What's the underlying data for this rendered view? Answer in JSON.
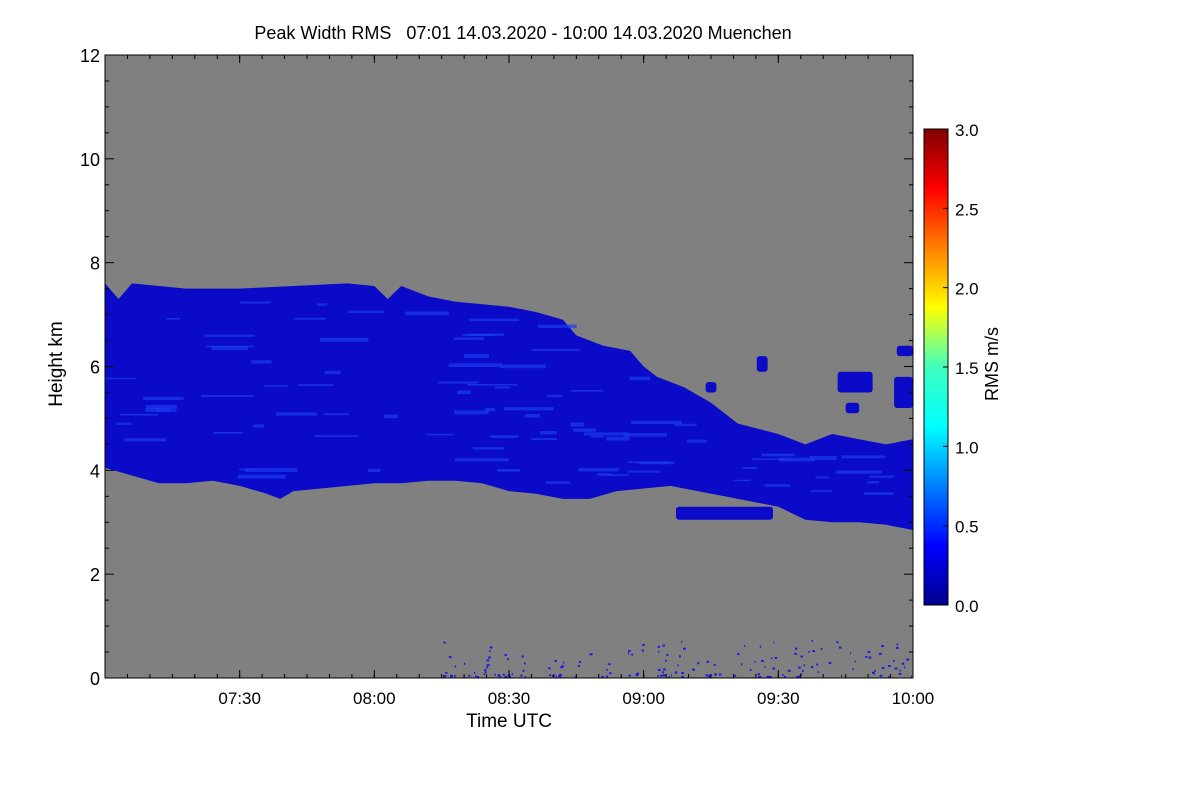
{
  "chart_data": {
    "type": "heatmap",
    "title": "Peak Width RMS   07:01 14.03.2020 - 10:00 14.03.2020 Muenchen",
    "xlabel": "Time UTC",
    "ylabel": "Height km",
    "xlim_hours": [
      7.0,
      10.0
    ],
    "ylim_km": [
      0,
      12
    ],
    "x_ticks": [
      {
        "value": 7.5,
        "label": "07:30"
      },
      {
        "value": 8.0,
        "label": "08:00"
      },
      {
        "value": 8.5,
        "label": "08:30"
      },
      {
        "value": 9.0,
        "label": "09:00"
      },
      {
        "value": 9.5,
        "label": "09:30"
      },
      {
        "value": 10.0,
        "label": "10:00"
      }
    ],
    "y_ticks": [
      {
        "value": 0,
        "label": "0"
      },
      {
        "value": 2,
        "label": "2"
      },
      {
        "value": 4,
        "label": "4"
      },
      {
        "value": 6,
        "label": "6"
      },
      {
        "value": 8,
        "label": "8"
      },
      {
        "value": 10,
        "label": "10"
      },
      {
        "value": 12,
        "label": "12"
      }
    ],
    "no_data_color": "#808080",
    "colorbar": {
      "label": "RMS m/s",
      "range": [
        0.0,
        3.0
      ],
      "colormap": "jet",
      "ticks": [
        {
          "value": 0.0,
          "label": "0.0"
        },
        {
          "value": 0.5,
          "label": "0.5"
        },
        {
          "value": 1.0,
          "label": "1.0"
        },
        {
          "value": 1.5,
          "label": "1.5"
        },
        {
          "value": 2.0,
          "label": "2.0"
        },
        {
          "value": 2.5,
          "label": "2.5"
        },
        {
          "value": 3.0,
          "label": "3.0"
        }
      ]
    },
    "cloud_layer": {
      "description_value_ms": 0.3,
      "color_dark": "#0a0ac8",
      "color_light": "#1a3cf0",
      "top_km": [
        [
          7.0,
          7.6
        ],
        [
          7.05,
          7.3
        ],
        [
          7.1,
          7.6
        ],
        [
          7.2,
          7.55
        ],
        [
          7.3,
          7.5
        ],
        [
          7.5,
          7.5
        ],
        [
          7.7,
          7.55
        ],
        [
          7.9,
          7.6
        ],
        [
          8.0,
          7.55
        ],
        [
          8.05,
          7.3
        ],
        [
          8.1,
          7.55
        ],
        [
          8.2,
          7.35
        ],
        [
          8.3,
          7.25
        ],
        [
          8.4,
          7.2
        ],
        [
          8.5,
          7.15
        ],
        [
          8.6,
          7.05
        ],
        [
          8.7,
          6.9
        ],
        [
          8.75,
          6.6
        ],
        [
          8.85,
          6.4
        ],
        [
          8.95,
          6.3
        ],
        [
          9.0,
          6.0
        ],
        [
          9.05,
          5.8
        ],
        [
          9.15,
          5.6
        ],
        [
          9.25,
          5.3
        ],
        [
          9.35,
          4.9
        ],
        [
          9.5,
          4.7
        ],
        [
          9.6,
          4.5
        ],
        [
          9.7,
          4.7
        ],
        [
          9.8,
          4.6
        ],
        [
          9.9,
          4.5
        ],
        [
          9.95,
          4.55
        ],
        [
          10.0,
          4.6
        ]
      ],
      "base_km": [
        [
          7.0,
          4.05
        ],
        [
          7.1,
          3.9
        ],
        [
          7.2,
          3.75
        ],
        [
          7.3,
          3.75
        ],
        [
          7.4,
          3.8
        ],
        [
          7.5,
          3.7
        ],
        [
          7.6,
          3.55
        ],
        [
          7.65,
          3.45
        ],
        [
          7.7,
          3.6
        ],
        [
          7.8,
          3.65
        ],
        [
          7.9,
          3.7
        ],
        [
          8.0,
          3.75
        ],
        [
          8.1,
          3.75
        ],
        [
          8.2,
          3.8
        ],
        [
          8.3,
          3.8
        ],
        [
          8.4,
          3.75
        ],
        [
          8.5,
          3.6
        ],
        [
          8.6,
          3.55
        ],
        [
          8.7,
          3.45
        ],
        [
          8.8,
          3.45
        ],
        [
          8.9,
          3.6
        ],
        [
          9.0,
          3.65
        ],
        [
          9.1,
          3.7
        ],
        [
          9.2,
          3.6
        ],
        [
          9.3,
          3.5
        ],
        [
          9.4,
          3.4
        ],
        [
          9.5,
          3.3
        ],
        [
          9.6,
          3.05
        ],
        [
          9.7,
          3.0
        ],
        [
          9.8,
          3.0
        ],
        [
          9.9,
          2.95
        ],
        [
          10.0,
          2.85
        ]
      ],
      "fragments": [
        {
          "time": [
            9.12,
            9.48
          ],
          "height": [
            3.05,
            3.3
          ]
        },
        {
          "time": [
            9.72,
            9.85
          ],
          "height": [
            5.5,
            5.9
          ]
        },
        {
          "time": [
            9.75,
            9.8
          ],
          "height": [
            5.1,
            5.3
          ]
        },
        {
          "time": [
            9.93,
            10.0
          ],
          "height": [
            5.2,
            5.8
          ]
        },
        {
          "time": [
            9.94,
            10.0
          ],
          "height": [
            6.2,
            6.4
          ]
        },
        {
          "time": [
            9.42,
            9.46
          ],
          "height": [
            5.9,
            6.2
          ]
        },
        {
          "time": [
            9.23,
            9.27
          ],
          "height": [
            5.5,
            5.7
          ]
        }
      ]
    },
    "near_ground_noise": {
      "time_range": [
        8.25,
        10.0
      ],
      "height_range": [
        0.0,
        0.7
      ]
    }
  }
}
